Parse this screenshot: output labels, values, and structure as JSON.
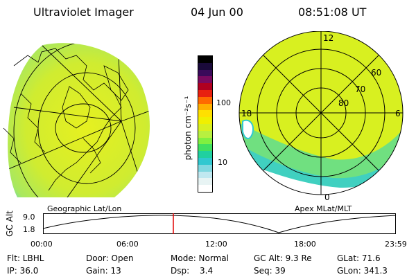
{
  "header": {
    "title": "Ultraviolet Imager",
    "date": "04 Jun 00",
    "time": "08:51:08 UT"
  },
  "left_panel": {
    "caption": "Geographic Lat/Lon"
  },
  "colorbar": {
    "unit_label": "photon cm⁻²s⁻¹",
    "ticks": [
      "100",
      "10"
    ],
    "colors": [
      "#000000",
      "#1a0a3a",
      "#3a0a5a",
      "#7a0a60",
      "#b00020",
      "#e82010",
      "#ff6a00",
      "#ffb000",
      "#ffe000",
      "#f0f000",
      "#d8f020",
      "#b8f040",
      "#80f040",
      "#40e060",
      "#20d0a0",
      "#30c8d0",
      "#80d8e0",
      "#c0e8f0",
      "#e8f4f4",
      "#ffffff"
    ]
  },
  "right_panel": {
    "caption": "Apex MLat/MLT",
    "mlt_labels": {
      "top": "12",
      "left": "18",
      "right": "6",
      "bottom": "0"
    },
    "mlat_labels": [
      "60",
      "70",
      "80"
    ]
  },
  "timeline": {
    "axis_title": "GC Alt",
    "y_ticks": [
      "9.0",
      "1.8"
    ],
    "x_ticks": [
      "00:00",
      "06:00",
      "12:00",
      "18:00",
      "23:59"
    ],
    "current_marker": "08:51"
  },
  "info": {
    "flt": "Flt: LBHL",
    "door": "Door: Open",
    "mode": "Mode: Normal",
    "gc_alt": "GC Alt: 9.3 Re",
    "glat": "GLat: 71.6",
    "ip": "IP: 36.0",
    "gain": "Gain: 13",
    "dsp_label": "Dsp:",
    "dsp_value": "3.4",
    "seq": "Seq: 39",
    "glon": "GLon: 341.3"
  },
  "colors": {
    "accent_marker": "#e00000",
    "image_base": "#d8f020",
    "image_low": "#30c8d0"
  }
}
